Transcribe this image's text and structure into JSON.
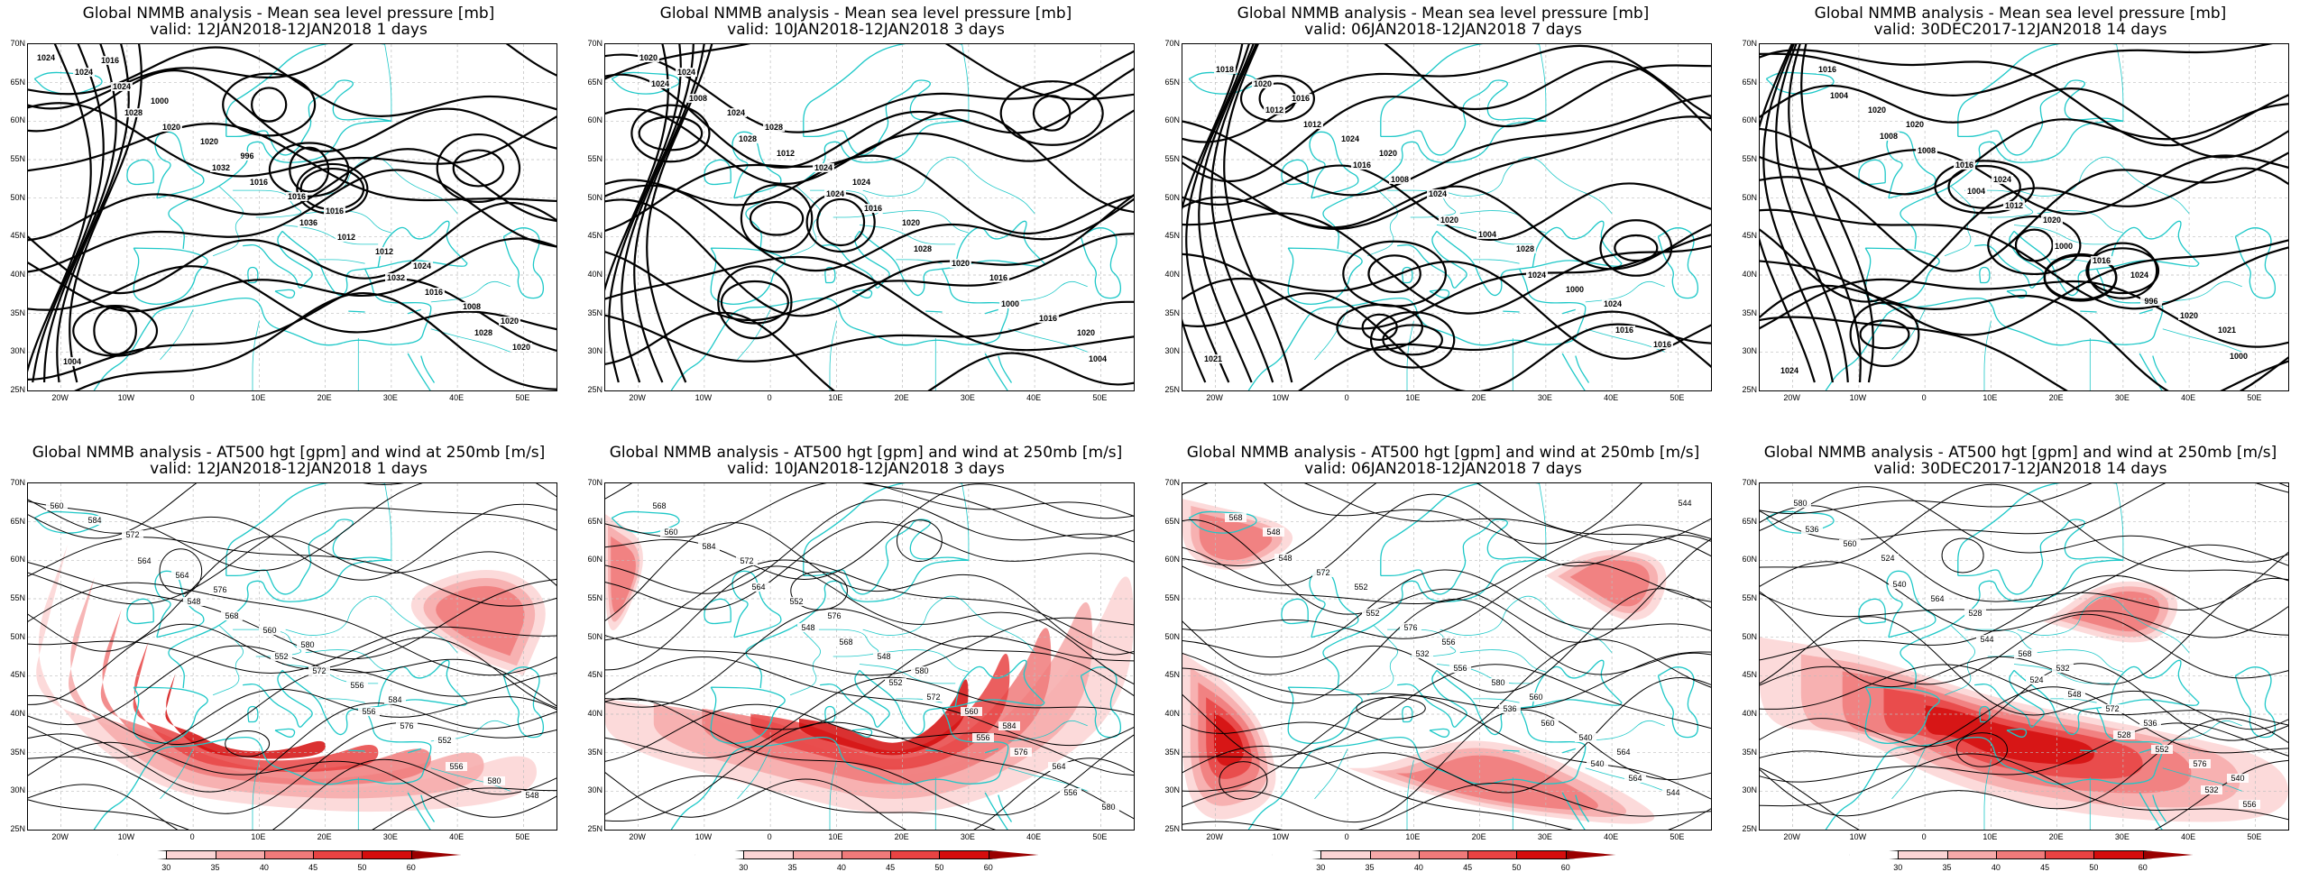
{
  "panels": [
    {
      "title": "Global NMMB analysis - Mean sea level pressure [mb]",
      "valid": "valid: 12JAN2018-12JAN2018   1 days",
      "kind": "mslp"
    },
    {
      "title": "Global NMMB analysis - Mean sea level pressure [mb]",
      "valid": "valid: 10JAN2018-12JAN2018   3 days",
      "kind": "mslp"
    },
    {
      "title": "Global NMMB analysis - Mean sea level pressure [mb]",
      "valid": "valid: 06JAN2018-12JAN2018   7 days",
      "kind": "mslp"
    },
    {
      "title": "Global NMMB analysis - Mean sea level pressure [mb]",
      "valid": "valid: 30DEC2017-12JAN2018   14 days",
      "kind": "mslp"
    },
    {
      "title": "Global NMMB analysis - AT500 hgt [gpm] and wind at 250mb [m/s]",
      "valid": "valid: 12JAN2018-12JAN2018   1 days",
      "kind": "z500"
    },
    {
      "title": "Global NMMB analysis - AT500 hgt [gpm] and wind at 250mb [m/s]",
      "valid": "valid: 10JAN2018-12JAN2018   3 days",
      "kind": "z500"
    },
    {
      "title": "Global NMMB analysis - AT500 hgt [gpm] and wind at 250mb [m/s]",
      "valid": "valid: 06JAN2018-12JAN2018   7 days",
      "kind": "z500"
    },
    {
      "title": "Global NMMB analysis - AT500 hgt [gpm] and wind at 250mb [m/s]",
      "valid": "valid: 30DEC2017-12JAN2018   14 days",
      "kind": "z500"
    }
  ],
  "axes": {
    "lat_labels": [
      "70N",
      "65N",
      "60N",
      "55N",
      "50N",
      "45N",
      "40N",
      "35N",
      "30N",
      "25N"
    ],
    "lon_labels": [
      "20W",
      "10W",
      "0",
      "10E",
      "20E",
      "30E",
      "40E",
      "50E"
    ]
  },
  "colorbar": {
    "labels": [
      "30",
      "35",
      "40",
      "45",
      "50",
      "60"
    ],
    "colors": [
      "#ffffff",
      "#fbd4d4",
      "#f6a9a9",
      "#f07a7a",
      "#e84343",
      "#d40d0d",
      "#9a0000"
    ]
  },
  "colors": {
    "coast": "#1ec8c8",
    "contour": "#000000",
    "grid": "#bdbdbd"
  },
  "mslp_labels": [
    [
      "1024",
      "1028",
      "1032",
      "1036",
      "1032",
      "1028",
      "1024",
      "1020",
      "1016",
      "1012",
      "1016",
      "1020",
      "1024",
      "1020",
      "1016",
      "1012",
      "1008",
      "1004",
      "1000",
      "996",
      "1016",
      "1024",
      "1020",
      "1016"
    ],
    [
      "1024",
      "1028",
      "1024",
      "1028",
      "1000",
      "1004",
      "1008",
      "1012",
      "1016",
      "1020",
      "1016",
      "1020",
      "1024",
      "1024",
      "1020",
      "1016",
      "1020",
      "1024",
      "1028",
      "1024"
    ],
    [
      "1012",
      "1016",
      "1020",
      "1024",
      "1016",
      "1018",
      "1012",
      "1008",
      "1004",
      "1000",
      "1016",
      "1020",
      "1024",
      "1024",
      "1028",
      "1024",
      "1021",
      "1016",
      "1020"
    ],
    [
      "1008",
      "1004",
      "1000",
      "996",
      "1000",
      "1004",
      "1008",
      "1012",
      "1016",
      "1020",
      "1024",
      "1020",
      "1016",
      "1020",
      "1024",
      "1021",
      "1016",
      "1020",
      "1024"
    ]
  ],
  "z500_labels": [
    [
      "548",
      "552",
      "556",
      "556",
      "560",
      "564",
      "568",
      "572",
      "576",
      "580",
      "584",
      "564",
      "560",
      "556",
      "552",
      "548",
      "572",
      "576",
      "580",
      "584"
    ],
    [
      "548",
      "552",
      "556",
      "556",
      "560",
      "564",
      "568",
      "572",
      "576",
      "580",
      "584",
      "552",
      "548",
      "560",
      "564",
      "568",
      "572",
      "576",
      "580",
      "584"
    ],
    [
      "532",
      "536",
      "540",
      "544",
      "548",
      "552",
      "556",
      "560",
      "564",
      "568",
      "572",
      "576",
      "580",
      "540",
      "544",
      "548",
      "552",
      "556",
      "560",
      "564"
    ],
    [
      "524",
      "528",
      "532",
      "536",
      "540",
      "544",
      "548",
      "552",
      "556",
      "560",
      "564",
      "568",
      "572",
      "576",
      "580",
      "524",
      "528",
      "532",
      "536",
      "540"
    ]
  ]
}
